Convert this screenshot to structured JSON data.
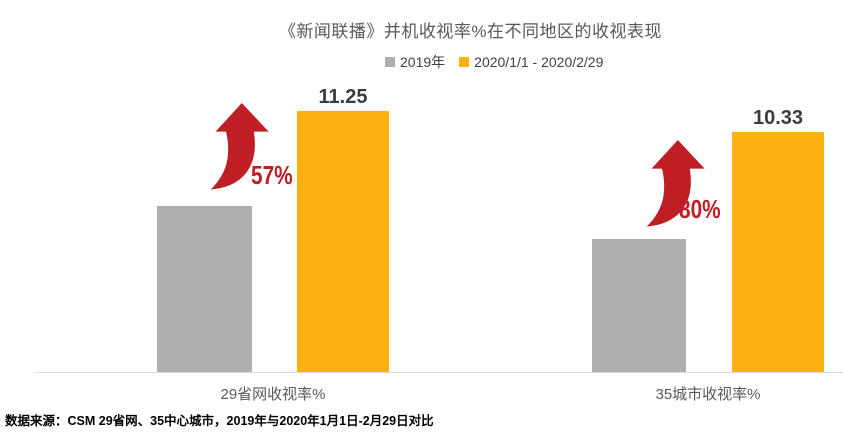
{
  "title": "《新闻联播》并机收视率%在不同地区的收视表现",
  "legend": {
    "items": [
      {
        "label": "2019年",
        "color": "#AFAFAF"
      },
      {
        "label": "2020/1/1 - 2020/2/29",
        "color": "#FBB110"
      }
    ]
  },
  "chart_data": {
    "type": "bar",
    "title": "《新闻联播》并机收视率%在不同地区的收视表现",
    "categories": [
      "29省网收视率%",
      "35城市收视率%"
    ],
    "series": [
      {
        "name": "2019年",
        "color": "#AFAFAF",
        "values": [
          7.17,
          5.74
        ]
      },
      {
        "name": "2020/1/1 - 2020/2/29",
        "color": "#FBB110",
        "values": [
          11.25,
          10.33
        ],
        "data_labels": [
          "11.25",
          "10.33"
        ]
      }
    ],
    "annotations": [
      {
        "group": 0,
        "growth_label": "57%"
      },
      {
        "group": 1,
        "growth_label": "80%"
      }
    ],
    "annotation_color": "#BE1E24",
    "ylim": [
      0,
      12.5
    ],
    "grid": false,
    "legend_position": "top",
    "axis_line_color": "#D9D9D9"
  },
  "footer": {
    "source_note": "数据来源：CSM 29省网、35中心城市，2019年与2020年1月1日-2月29日对比"
  }
}
